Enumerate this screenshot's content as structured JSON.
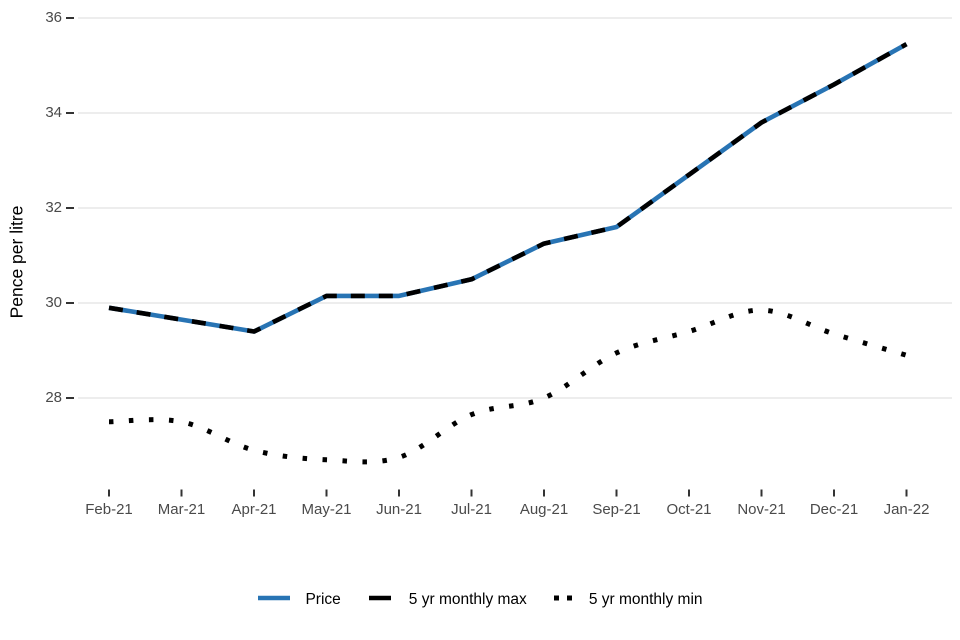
{
  "chart_data": {
    "type": "line",
    "title": "",
    "xlabel": "",
    "ylabel": "Pence per litre",
    "categories": [
      "Feb-21",
      "Mar-21",
      "Apr-21",
      "May-21",
      "Jun-21",
      "Jul-21",
      "Aug-21",
      "Sep-21",
      "Oct-21",
      "Nov-21",
      "Dec-21",
      "Jan-22"
    ],
    "series": [
      {
        "name": "Price",
        "color": "#2874B4",
        "line_style": "solid",
        "values": [
          29.9,
          29.65,
          29.4,
          30.15,
          30.15,
          30.5,
          31.25,
          31.6,
          32.7,
          33.8,
          34.6,
          35.45
        ]
      },
      {
        "name": "5 yr monthly max",
        "color": "#000000",
        "line_style": "dashed",
        "values": [
          29.9,
          29.65,
          29.4,
          30.15,
          30.15,
          30.5,
          31.25,
          31.6,
          32.7,
          33.8,
          34.6,
          35.45
        ]
      },
      {
        "name": "5 yr monthly min",
        "color": "#000000",
        "line_style": "dotted",
        "values": [
          27.5,
          27.5,
          26.9,
          26.7,
          26.75,
          27.65,
          28.0,
          28.95,
          29.4,
          29.85,
          29.35,
          28.9
        ]
      }
    ],
    "yticks": [
      28,
      30,
      32,
      34,
      36
    ],
    "ylim": [
      26.3,
      36.3
    ],
    "grid": "horizontal-only",
    "legend_position": "bottom",
    "colors": {
      "background": "#FFFFFF",
      "grid": "#E7E7E7",
      "axis_text": "#4A4A4A",
      "tick_mark": "#333333",
      "axis_title": "#000000",
      "price_blue": "#2874B4",
      "line_black": "#000000"
    }
  }
}
